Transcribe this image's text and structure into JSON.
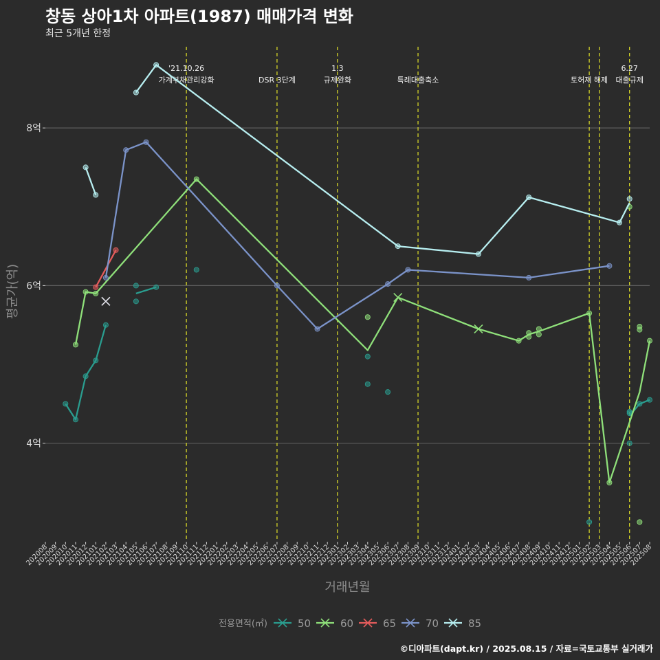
{
  "title": "창동 상아1차 아파트(1987) 매매가격 변화",
  "subtitle": "최근 5개년 한정",
  "caption": "©디아파트(dapt.kr) / 2025.08.15 / 자료=국토교통부 실거래가",
  "chart_data": {
    "type": "line",
    "xlabel": "거래년월",
    "ylabel": "평균가(억)",
    "x_ticks": [
      "202008",
      "202009",
      "202010",
      "202011",
      "202012",
      "202101",
      "202102",
      "202103",
      "202104",
      "202105",
      "202106",
      "202107",
      "202108",
      "202109",
      "202110",
      "202111",
      "202112",
      "202201",
      "202202",
      "202203",
      "202204",
      "202205",
      "202206",
      "202207",
      "202208",
      "202209",
      "202210",
      "202211",
      "202212",
      "202301",
      "202302",
      "202303",
      "202304",
      "202305",
      "202306",
      "202307",
      "202308",
      "202309",
      "202310",
      "202311",
      "202312",
      "202401",
      "202402",
      "202403",
      "202404",
      "202405",
      "202406",
      "202407",
      "202408",
      "202409",
      "202410",
      "202411",
      "202412",
      "202501",
      "202502",
      "202503",
      "202504",
      "202505",
      "202506",
      "202507",
      "202508"
    ],
    "y_ticks": [
      {
        "value": 4,
        "label": "4억"
      },
      {
        "value": 6,
        "label": "6억"
      },
      {
        "value": 8,
        "label": "8억"
      }
    ],
    "ylim": [
      2.75,
      9.1
    ],
    "grid": true,
    "legend_title": "전용면적(㎡)",
    "legend_position": "bottom",
    "events": [
      {
        "x": "202110",
        "lines": [
          "'21.10.26",
          "가계부채관리강화"
        ]
      },
      {
        "x": "202207",
        "lines": [
          "DSR 3단계"
        ]
      },
      {
        "x": "202301",
        "lines": [
          "1.3",
          "규제완화"
        ]
      },
      {
        "x": "202309",
        "lines": [
          "특례대출축소"
        ]
      },
      {
        "x": "202502",
        "lines": [
          "토허제 해제"
        ]
      },
      {
        "x": "202503",
        "lines": []
      },
      {
        "x": "202506",
        "lines": [
          "6.27",
          "대출규제"
        ]
      }
    ],
    "series": [
      {
        "name": "50",
        "color": "#2a9d8f",
        "line": [
          [
            "202010",
            4.5
          ],
          [
            "202011",
            4.3
          ],
          [
            "202012",
            4.85
          ],
          [
            "202101",
            5.05
          ],
          [
            "202102",
            5.5
          ],
          null,
          [
            "202105",
            5.9
          ],
          [
            "202107",
            5.98
          ],
          null,
          [
            "202506",
            4.35
          ],
          [
            "202507",
            4.5
          ],
          [
            "202508",
            4.55
          ]
        ],
        "points": [
          [
            "202010",
            4.5
          ],
          [
            "202011",
            4.3
          ],
          [
            "202012",
            4.85
          ],
          [
            "202101",
            5.05
          ],
          [
            "202102",
            5.5
          ],
          [
            "202105",
            6.0
          ],
          [
            "202105",
            5.8
          ],
          [
            "202107",
            5.98
          ],
          [
            "202111",
            6.2
          ],
          [
            "202304",
            5.1
          ],
          [
            "202304",
            4.75
          ],
          [
            "202306",
            4.65
          ],
          [
            "202502",
            3.0
          ],
          [
            "202506",
            4.4
          ],
          [
            "202506",
            4.0
          ],
          [
            "202506",
            4.38
          ],
          [
            "202507",
            4.5
          ],
          [
            "202508",
            4.55
          ]
        ],
        "crosses": []
      },
      {
        "name": "60",
        "color": "#8fe07a",
        "line": [
          [
            "202011",
            5.25
          ],
          [
            "202012",
            5.92
          ],
          [
            "202101",
            5.9
          ],
          [
            "202111",
            7.35
          ],
          [
            "202304",
            5.18
          ],
          [
            "202307",
            5.85
          ],
          [
            "202403",
            5.45
          ],
          [
            "202407",
            5.3
          ],
          [
            "202408",
            5.38
          ],
          [
            "202409",
            5.42
          ],
          [
            "202502",
            5.65
          ],
          [
            "202504",
            3.5
          ],
          [
            "202507",
            4.65
          ],
          [
            "202508",
            5.3
          ]
        ],
        "points": [
          [
            "202011",
            5.25
          ],
          [
            "202012",
            5.92
          ],
          [
            "202101",
            5.9
          ],
          [
            "202111",
            7.35
          ],
          [
            "202304",
            5.6
          ],
          [
            "202407",
            5.3
          ],
          [
            "202408",
            5.35
          ],
          [
            "202408",
            5.4
          ],
          [
            "202409",
            5.38
          ],
          [
            "202409",
            5.45
          ],
          [
            "202502",
            5.65
          ],
          [
            "202504",
            3.5
          ],
          [
            "202506",
            7.0
          ],
          [
            "202507",
            5.48
          ],
          [
            "202507",
            5.44
          ],
          [
            "202507",
            3.0
          ],
          [
            "202508",
            5.3
          ]
        ],
        "crosses": [
          [
            "202307",
            5.85
          ],
          [
            "202403",
            5.45
          ]
        ]
      },
      {
        "name": "65",
        "color": "#e55c5c",
        "line": [
          [
            "202101",
            5.98
          ],
          [
            "202103",
            6.45
          ]
        ],
        "points": [
          [
            "202101",
            5.98
          ],
          [
            "202103",
            6.45
          ]
        ],
        "crosses": []
      },
      {
        "name": "70",
        "color": "#7b93c9",
        "line": [
          [
            "202102",
            6.1
          ],
          [
            "202104",
            7.72
          ],
          [
            "202106",
            7.82
          ],
          [
            "202207",
            6.0
          ],
          [
            "202211",
            5.45
          ],
          [
            "202306",
            6.02
          ],
          [
            "202308",
            6.2
          ],
          [
            "202408",
            6.1
          ],
          [
            "202504",
            6.25
          ]
        ],
        "points": [
          [
            "202102",
            6.1
          ],
          [
            "202104",
            7.72
          ],
          [
            "202106",
            7.82
          ],
          [
            "202207",
            6.0
          ],
          [
            "202211",
            5.45
          ],
          [
            "202306",
            6.02
          ],
          [
            "202308",
            6.2
          ],
          [
            "202408",
            6.1
          ],
          [
            "202504",
            6.25
          ]
        ],
        "crosses": [
          [
            "202102",
            5.8
          ]
        ]
      },
      {
        "name": "85",
        "color": "#b7eef0",
        "line": [
          [
            "202012",
            7.5
          ],
          [
            "202101",
            7.15
          ],
          null,
          [
            "202105",
            8.45
          ],
          [
            "202107",
            8.8
          ],
          [
            "202307",
            6.5
          ],
          [
            "202403",
            6.4
          ],
          [
            "202408",
            7.12
          ],
          [
            "202505",
            6.8
          ],
          [
            "202506",
            7.05
          ]
        ],
        "points": [
          [
            "202012",
            7.5
          ],
          [
            "202101",
            7.15
          ],
          [
            "202105",
            8.45
          ],
          [
            "202107",
            8.8
          ],
          [
            "202307",
            6.5
          ],
          [
            "202403",
            6.4
          ],
          [
            "202408",
            7.12
          ],
          [
            "202505",
            6.8
          ],
          [
            "202506",
            7.1
          ]
        ],
        "crosses": []
      }
    ]
  }
}
